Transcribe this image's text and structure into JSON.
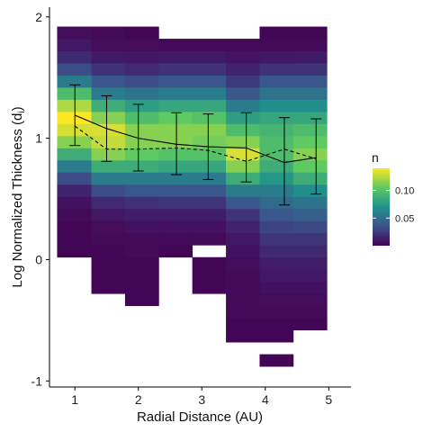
{
  "chart_data": {
    "type": "heatmap",
    "xlabel": "Radial Distance (AU)",
    "ylabel": "Log Normalized Thickness (d",
    "ylabel_subscript": "i",
    "ylabel_suffix": ")",
    "xlim": [
      0.6,
      5.35
    ],
    "ylim": [
      -1.05,
      2.08
    ],
    "x_ticks": [
      "1",
      "2",
      "3",
      "4",
      "5"
    ],
    "y_ticks": [
      "-1",
      "0",
      "1",
      "2"
    ],
    "x_bin_edges": [
      0.72,
      1.26,
      1.79,
      2.32,
      2.85,
      3.38,
      3.91,
      4.44,
      4.97
    ],
    "y_bin_edges": [
      -0.98,
      -0.88,
      -0.78,
      -0.68,
      -0.58,
      -0.48,
      -0.38,
      -0.28,
      -0.18,
      -0.08,
      0.02,
      0.12,
      0.22,
      0.32,
      0.42,
      0.52,
      0.62,
      0.72,
      0.82,
      0.92,
      1.02,
      1.12,
      1.22,
      1.32,
      1.42,
      1.52,
      1.62,
      1.72,
      1.82,
      1.92
    ],
    "bin_values": [
      [
        null,
        null,
        null,
        null,
        null,
        null,
        null,
        null,
        null,
        null,
        0.001,
        0.001,
        0.001,
        0.002,
        0.004,
        0.01,
        0.025,
        0.05,
        0.08,
        0.11,
        0.13,
        0.14,
        0.12,
        0.09,
        0.05,
        0.025,
        0.012,
        0.006,
        0.003
      ],
      [
        null,
        null,
        null,
        null,
        null,
        null,
        null,
        0.001,
        0.001,
        0.001,
        0.001,
        0.002,
        0.003,
        0.006,
        0.012,
        0.025,
        0.05,
        0.08,
        0.11,
        0.125,
        0.13,
        0.11,
        0.08,
        0.05,
        0.03,
        0.015,
        0.007,
        0.003,
        0.002
      ],
      [
        null,
        null,
        null,
        null,
        null,
        null,
        0.001,
        0.001,
        0.001,
        0.001,
        0.002,
        0.002,
        0.004,
        0.008,
        0.015,
        0.03,
        0.05,
        0.08,
        0.1,
        0.11,
        0.11,
        0.09,
        0.07,
        0.045,
        0.025,
        0.012,
        0.006,
        0.003,
        0.001
      ],
      [
        null,
        null,
        null,
        null,
        null,
        null,
        null,
        null,
        null,
        null,
        0.001,
        0.002,
        0.004,
        0.008,
        0.016,
        0.03,
        0.05,
        0.075,
        0.095,
        0.11,
        0.11,
        0.1,
        0.075,
        0.05,
        0.03,
        0.015,
        0.007,
        0.002,
        null
      ],
      [
        null,
        null,
        null,
        null,
        null,
        null,
        null,
        0.001,
        0.001,
        0.001,
        null,
        0.002,
        0.004,
        0.008,
        0.016,
        0.03,
        0.05,
        0.075,
        0.095,
        0.105,
        0.11,
        0.095,
        0.075,
        0.05,
        0.03,
        0.015,
        0.007,
        0.002,
        null
      ],
      [
        null,
        null,
        null,
        0.001,
        0.001,
        0.002,
        0.002,
        0.002,
        0.002,
        0.003,
        0.004,
        0.006,
        0.01,
        0.016,
        0.03,
        0.05,
        0.08,
        0.11,
        0.13,
        0.11,
        0.09,
        0.07,
        0.05,
        0.03,
        0.018,
        0.01,
        0.005,
        0.002,
        null
      ],
      [
        null,
        0.001,
        null,
        0.001,
        0.001,
        0.002,
        0.003,
        0.004,
        0.006,
        0.008,
        0.012,
        0.016,
        0.022,
        0.03,
        0.04,
        0.05,
        0.065,
        0.08,
        0.09,
        0.09,
        0.085,
        0.075,
        0.06,
        0.045,
        0.03,
        0.015,
        0.006,
        0.002,
        0.001
      ],
      [
        null,
        null,
        null,
        null,
        0.001,
        0.002,
        0.003,
        0.004,
        0.006,
        0.008,
        0.012,
        0.016,
        0.024,
        0.034,
        0.045,
        0.06,
        0.08,
        0.1,
        0.11,
        0.1,
        0.09,
        0.075,
        0.06,
        0.045,
        0.03,
        0.015,
        0.007,
        0.002,
        0.001
      ]
    ],
    "series": [
      {
        "name": "",
        "style": "solid",
        "x": [
          1,
          1.5,
          2,
          2.6,
          3.1,
          3.7,
          4.3,
          4.8
        ],
        "y": [
          1.19,
          1.08,
          1.0,
          0.95,
          0.93,
          0.92,
          0.8,
          0.84
        ]
      },
      {
        "name": "",
        "style": "dashed",
        "x": [
          1,
          1.5,
          2,
          2.6,
          3.1,
          3.7,
          4.3,
          4.8
        ],
        "y": [
          1.1,
          0.91,
          0.91,
          0.92,
          0.9,
          0.81,
          0.91,
          0.83
        ]
      }
    ],
    "error_bars": {
      "x": [
        1,
        1.5,
        2,
        2.6,
        3.1,
        3.7,
        4.3,
        4.8
      ],
      "lower": [
        0.94,
        0.81,
        0.73,
        0.7,
        0.66,
        0.64,
        0.45,
        0.54
      ],
      "upper": [
        1.44,
        1.35,
        1.28,
        1.21,
        1.2,
        1.21,
        1.17,
        1.16
      ]
    },
    "legend": {
      "title": "n",
      "labels": [
        "0.10",
        "0.05"
      ],
      "label_values": [
        0.1,
        0.05
      ],
      "min": 0.0,
      "max": 0.14,
      "placement": "right"
    },
    "colors": {
      "background": "#ffffff",
      "axis": "#000000",
      "scale": [
        "#440154",
        "#3b528b",
        "#21918c",
        "#5ec962",
        "#fde725"
      ],
      "line": "#000000"
    },
    "grid": false
  }
}
